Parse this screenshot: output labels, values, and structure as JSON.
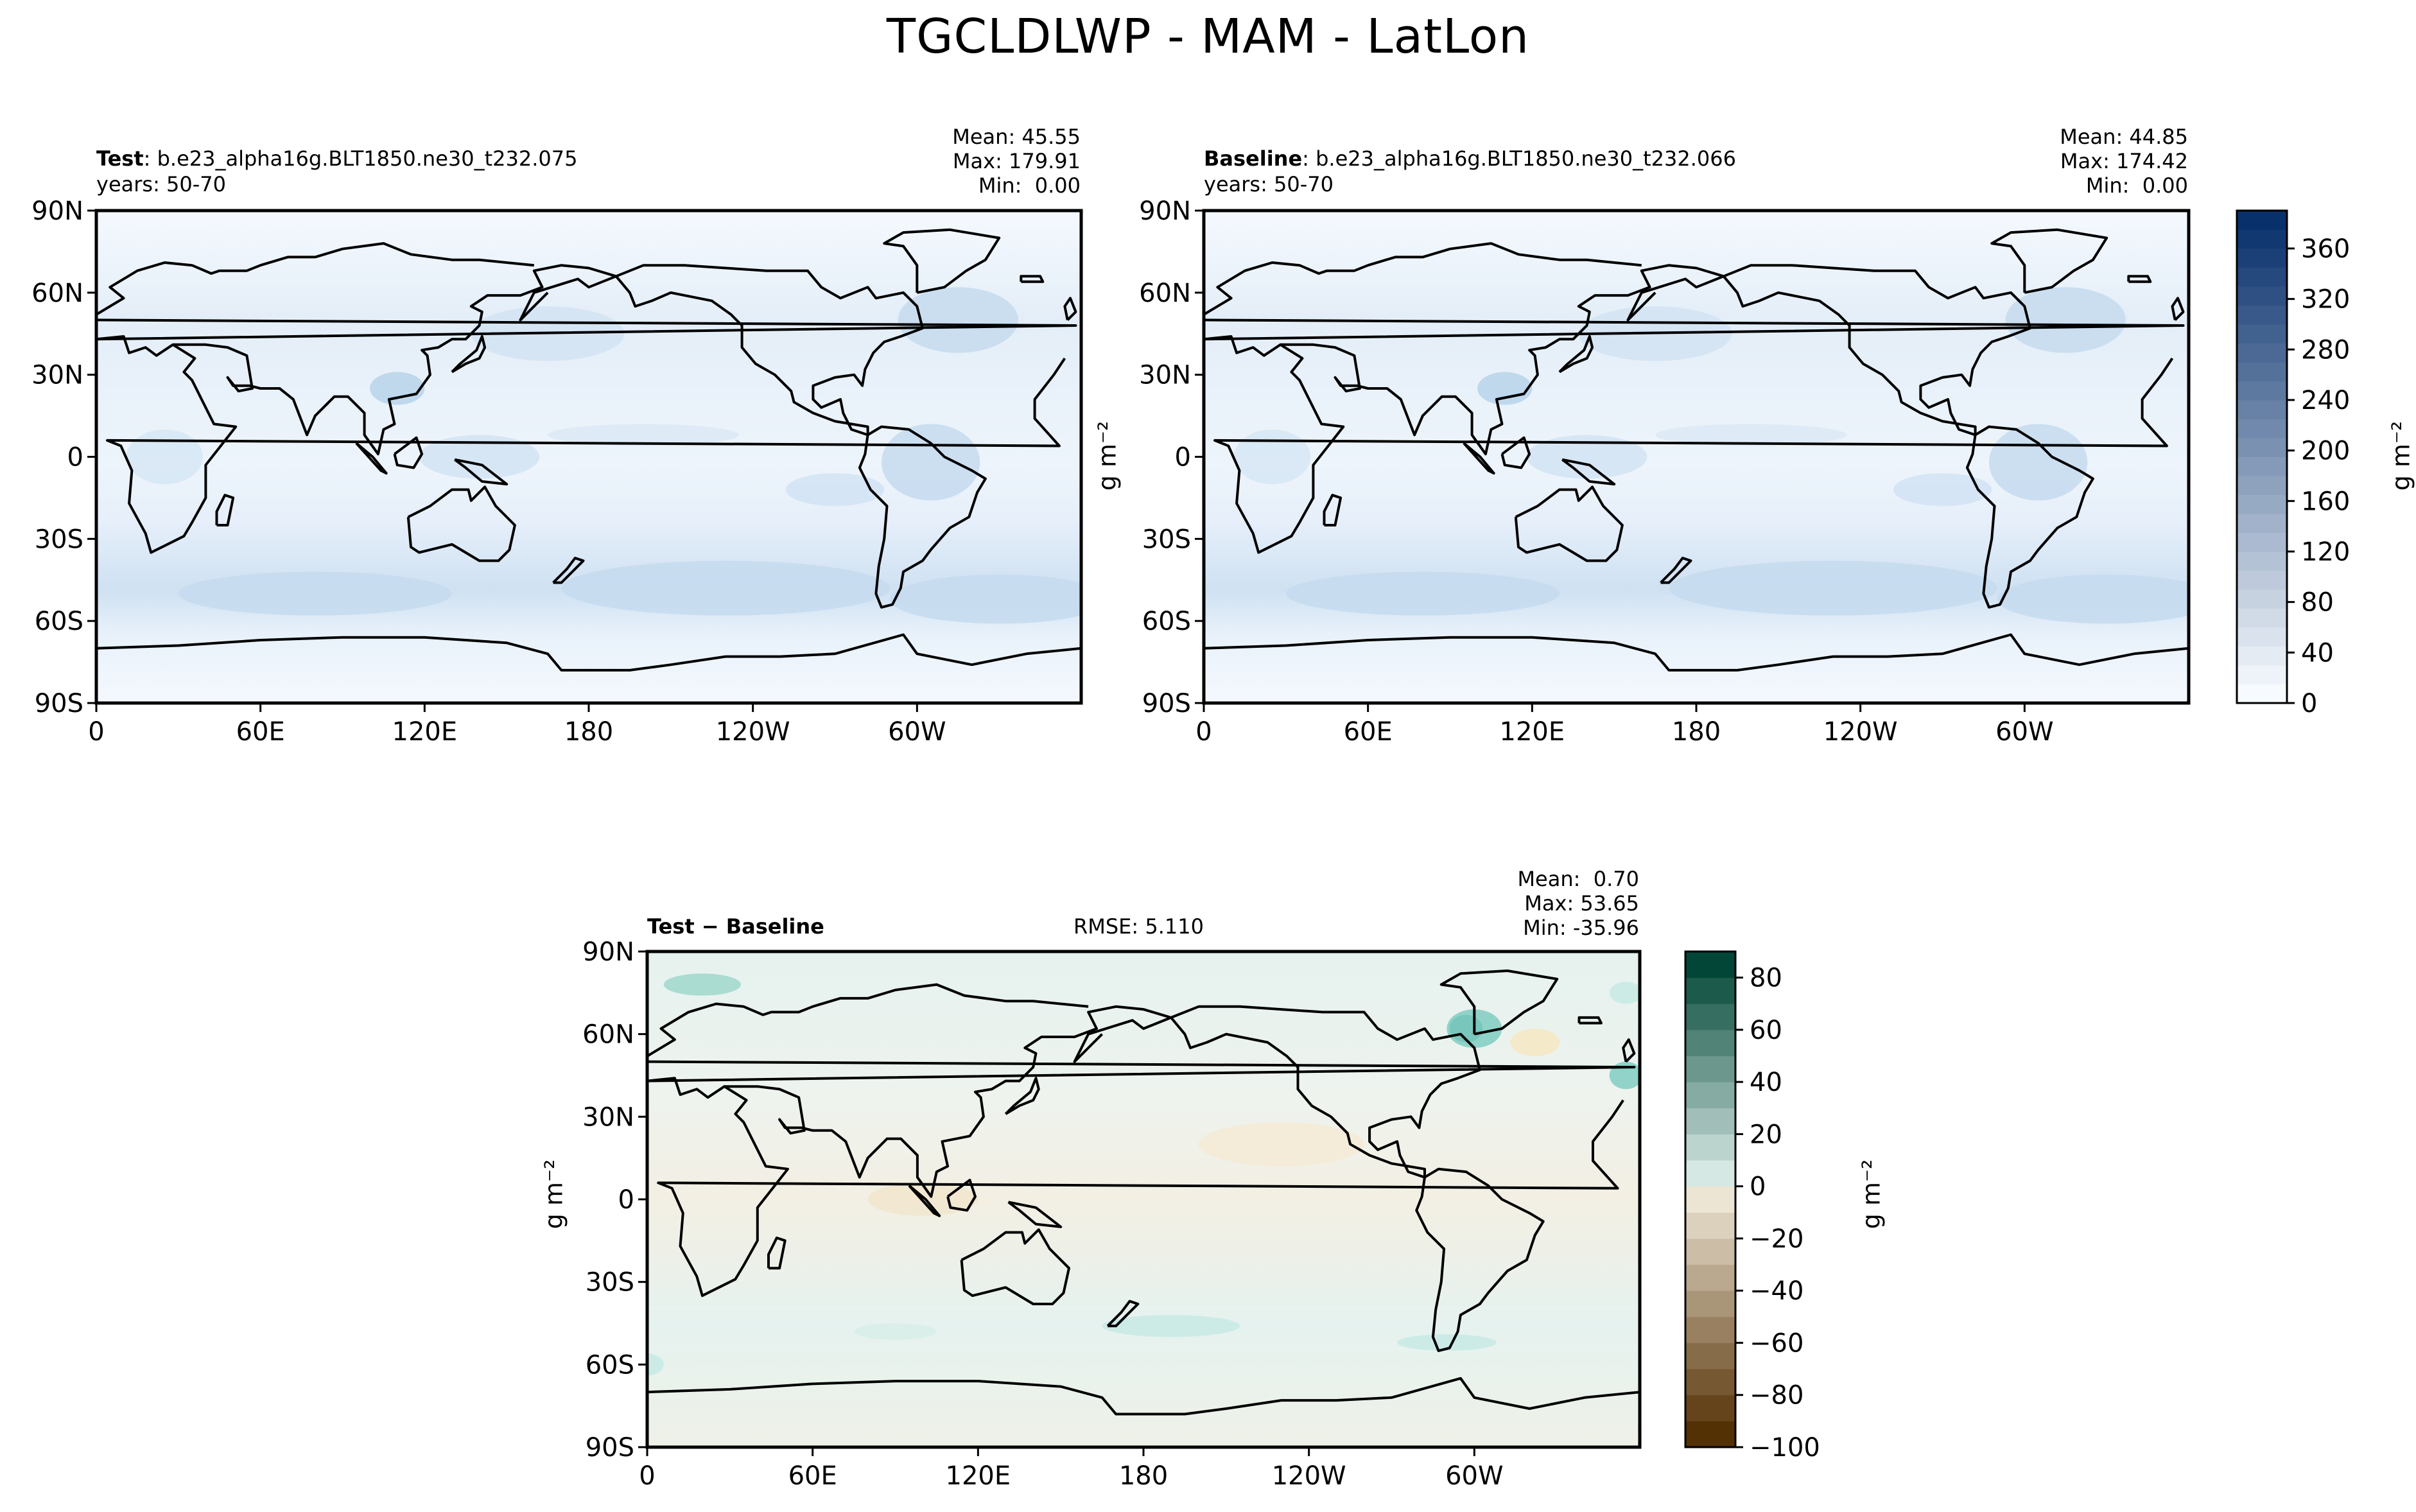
{
  "title": "TGCLDLWP - MAM - LatLon",
  "units_label": "g m⁻²",
  "colors": {
    "cmap_abs_low": "#f7fbff",
    "cmap_abs_high": "#08306b",
    "cmap_diff_pos": "#014636",
    "cmap_diff_neg": "#543005",
    "land_outline": "#000000"
  },
  "chart_data": [
    {
      "type": "heatmap",
      "name": "test",
      "label_bold": "Test",
      "label_rest": ": b.e23_alpha16g.BLT1850.ne30_t232.075",
      "years": "years: 50-70",
      "stats": [
        "Mean: 45.55",
        "Max: 179.91",
        "Min:  0.00"
      ],
      "mean": 45.55,
      "max": 179.91,
      "min": 0.0,
      "xticks": [
        "0",
        "60E",
        "120E",
        "180",
        "120W",
        "60W"
      ],
      "xtick_lon": [
        0,
        60,
        120,
        180,
        240,
        300
      ],
      "yticks": [
        "90N",
        "60N",
        "30N",
        "0",
        "30S",
        "60S",
        "90S"
      ],
      "ytick_lat": [
        90,
        60,
        30,
        0,
        -30,
        -60,
        -90
      ],
      "xlim": [
        0,
        360
      ],
      "ylim": [
        -90,
        90
      ]
    },
    {
      "type": "heatmap",
      "name": "baseline",
      "label_bold": "Baseline",
      "label_rest": ": b.e23_alpha16g.BLT1850.ne30_t232.066",
      "years": "years: 50-70",
      "stats": [
        "Mean: 44.85",
        "Max: 174.42",
        "Min:  0.00"
      ],
      "mean": 44.85,
      "max": 174.42,
      "min": 0.0,
      "xticks": [
        "0",
        "60E",
        "120E",
        "180",
        "120W",
        "60W"
      ],
      "xtick_lon": [
        0,
        60,
        120,
        180,
        240,
        300
      ],
      "yticks": [
        "90N",
        "60N",
        "30N",
        "0",
        "30S",
        "60S",
        "90S"
      ],
      "ytick_lat": [
        90,
        60,
        30,
        0,
        -30,
        -60,
        -90
      ],
      "xlim": [
        0,
        360
      ],
      "ylim": [
        -90,
        90
      ]
    },
    {
      "type": "heatmap",
      "name": "difference",
      "label_bold": "Test − Baseline",
      "rmse": "RMSE: 5.110",
      "stats": [
        "Mean:  0.70",
        "Max: 53.65",
        "Min: -35.96"
      ],
      "mean": 0.7,
      "max": 53.65,
      "min": -35.96,
      "xticks": [
        "0",
        "60E",
        "120E",
        "180",
        "120W",
        "60W"
      ],
      "xtick_lon": [
        0,
        60,
        120,
        180,
        240,
        300
      ],
      "yticks": [
        "90N",
        "60N",
        "30N",
        "0",
        "30S",
        "60S",
        "90S"
      ],
      "ytick_lat": [
        90,
        60,
        30,
        0,
        -30,
        -60,
        -90
      ],
      "xlim": [
        0,
        360
      ],
      "ylim": [
        -90,
        90
      ]
    },
    {
      "type": "colorbar",
      "name": "colorbar-absolute",
      "ticks": [
        0,
        40,
        80,
        120,
        160,
        200,
        240,
        280,
        320,
        360
      ],
      "range": [
        0,
        390
      ],
      "levels": 26,
      "label": "g m⁻²"
    },
    {
      "type": "colorbar",
      "name": "colorbar-difference",
      "tick_labels": [
        "80",
        "60",
        "40",
        "20",
        "0",
        "−20",
        "−40",
        "−60",
        "−80",
        "−100"
      ],
      "ticks": [
        80,
        60,
        40,
        20,
        0,
        -20,
        -40,
        -60,
        -80,
        -100
      ],
      "range": [
        -100,
        90
      ],
      "levels": [
        -100,
        -90,
        -80,
        -70,
        -60,
        -50,
        -40,
        -30,
        -20,
        -10,
        0,
        10,
        20,
        30,
        40,
        50,
        60,
        70,
        80,
        90
      ],
      "label": "g m⁻²"
    }
  ]
}
